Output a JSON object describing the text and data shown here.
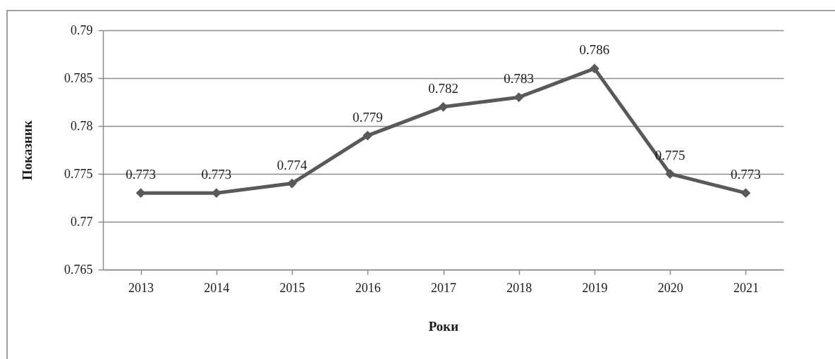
{
  "chart_data": {
    "type": "line",
    "xlabel": "Роки",
    "ylabel": "Показник",
    "categories": [
      "2013",
      "2014",
      "2015",
      "2016",
      "2017",
      "2018",
      "2019",
      "2020",
      "2021"
    ],
    "series": [
      {
        "color": "#595959",
        "values": [
          0.773,
          0.773,
          0.774,
          0.779,
          0.782,
          0.783,
          0.786,
          0.775,
          0.773
        ]
      }
    ],
    "ylim": [
      0.765,
      0.79
    ],
    "yticks": [
      0.765,
      0.77,
      0.775,
      0.78,
      0.785,
      0.79
    ],
    "grid": "y",
    "marker": "diamond",
    "line_style": "solid",
    "data_labels": true
  }
}
